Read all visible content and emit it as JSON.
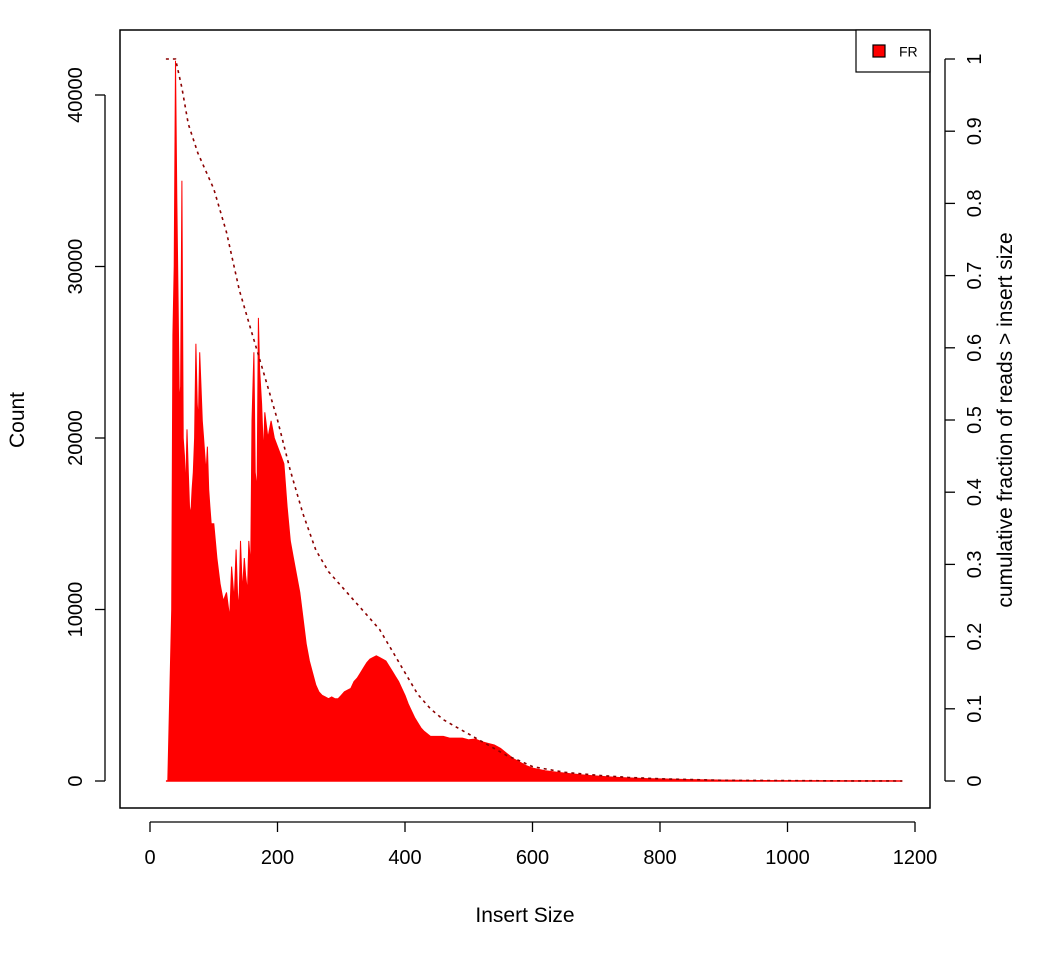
{
  "chart_data": {
    "type": "area",
    "title": "",
    "xlabel": "Insert Size",
    "ylabel": "Count",
    "y2label": "cumulative fraction of reads > insert size",
    "xlim": [
      0,
      1200
    ],
    "ylim": [
      0,
      42500
    ],
    "y2lim": [
      0,
      1
    ],
    "x_ticks": [
      "0",
      "200",
      "400",
      "600",
      "800",
      "1000",
      "1200"
    ],
    "y_ticks": [
      "0",
      "10000",
      "20000",
      "30000",
      "40000"
    ],
    "y2_ticks": [
      "0",
      "0.1",
      "0.2",
      "0.3",
      "0.4",
      "0.5",
      "0.6",
      "0.7",
      "0.8",
      "0.9",
      "1"
    ],
    "legend": {
      "position": "top-right",
      "entries": [
        "FR"
      ]
    },
    "colors": {
      "histogram": "#ff0000",
      "cumulative_line": "#8b0000"
    },
    "series": [
      {
        "name": "FR",
        "kind": "histogram",
        "x": [
          28,
          34,
          36,
          38,
          40,
          42,
          44,
          46,
          48,
          50,
          52,
          54,
          56,
          58,
          60,
          62,
          64,
          66,
          68,
          70,
          72,
          74,
          76,
          78,
          80,
          82,
          84,
          86,
          88,
          90,
          92,
          94,
          96,
          100,
          105,
          110,
          115,
          120,
          125,
          128,
          132,
          135,
          138,
          140,
          142,
          145,
          148,
          150,
          153,
          155,
          158,
          160,
          163,
          165,
          168,
          170,
          172,
          175,
          178,
          180,
          185,
          190,
          195,
          200,
          205,
          210,
          215,
          220,
          225,
          230,
          235,
          240,
          245,
          250,
          255,
          260,
          265,
          270,
          275,
          280,
          285,
          290,
          295,
          300,
          305,
          310,
          315,
          320,
          325,
          330,
          335,
          340,
          345,
          350,
          355,
          360,
          365,
          370,
          375,
          380,
          385,
          390,
          395,
          400,
          405,
          410,
          415,
          420,
          425,
          430,
          440,
          450,
          460,
          470,
          480,
          490,
          500,
          510,
          520,
          530,
          540,
          550,
          560,
          570,
          580,
          590,
          600,
          620,
          640,
          660,
          680,
          700,
          720,
          740,
          760,
          780,
          800,
          850,
          900,
          950,
          1000,
          1050,
          1100,
          1150,
          1180
        ],
        "y": [
          0,
          10000,
          26000,
          30000,
          42000,
          34000,
          28000,
          22000,
          23000,
          35000,
          20000,
          19000,
          17000,
          20500,
          18000,
          16000,
          15500,
          17000,
          18000,
          20000,
          25500,
          22000,
          21000,
          25000,
          23000,
          21000,
          20000,
          19000,
          18000,
          19500,
          17000,
          16000,
          15000,
          15000,
          13000,
          11500,
          10500,
          11000,
          9500,
          12500,
          10500,
          13500,
          10000,
          11000,
          14000,
          11000,
          13000,
          12000,
          11000,
          14000,
          12500,
          21000,
          25000,
          18000,
          17000,
          27000,
          24000,
          22000,
          19000,
          21500,
          20000,
          21000,
          20000,
          19500,
          19000,
          18500,
          16000,
          14000,
          13000,
          12000,
          11000,
          9500,
          8000,
          7000,
          6300,
          5600,
          5200,
          5000,
          4900,
          4800,
          4900,
          4800,
          4800,
          5000,
          5200,
          5300,
          5400,
          5800,
          6000,
          6300,
          6600,
          6900,
          7100,
          7200,
          7300,
          7200,
          7100,
          7000,
          6700,
          6400,
          6100,
          5800,
          5400,
          5000,
          4500,
          4100,
          3700,
          3400,
          3100,
          2900,
          2600,
          2600,
          2600,
          2500,
          2500,
          2500,
          2400,
          2450,
          2300,
          2200,
          2100,
          1900,
          1600,
          1300,
          1100,
          900,
          750,
          600,
          500,
          420,
          350,
          290,
          240,
          200,
          170,
          140,
          120,
          80,
          50,
          30,
          20,
          10,
          5,
          3,
          2
        ]
      },
      {
        "name": "cumulative fraction of reads > insert size",
        "kind": "line",
        "x": [
          25,
          40,
          50,
          60,
          75,
          100,
          120,
          140,
          160,
          170,
          180,
          200,
          220,
          240,
          260,
          280,
          300,
          320,
          340,
          360,
          380,
          400,
          420,
          440,
          460,
          480,
          500,
          520,
          540,
          560,
          580,
          600,
          650,
          700,
          750,
          800,
          900,
          1000,
          1100,
          1180
        ],
        "y": [
          1,
          1,
          0.96,
          0.91,
          0.87,
          0.82,
          0.76,
          0.68,
          0.62,
          0.59,
          0.56,
          0.5,
          0.43,
          0.37,
          0.32,
          0.29,
          0.27,
          0.25,
          0.23,
          0.21,
          0.18,
          0.15,
          0.12,
          0.1,
          0.085,
          0.075,
          0.065,
          0.055,
          0.045,
          0.035,
          0.028,
          0.02,
          0.012,
          0.008,
          0.005,
          0.003,
          0.001,
          0.0005,
          0.0002,
          0
        ]
      }
    ]
  }
}
